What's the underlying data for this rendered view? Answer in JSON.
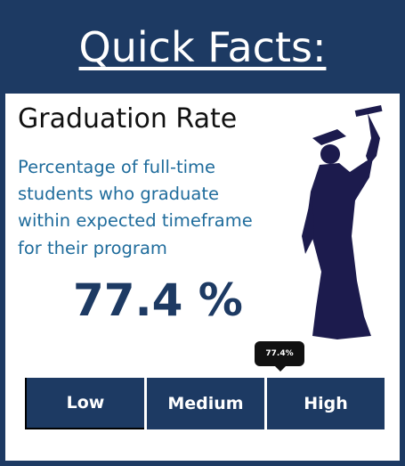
{
  "header": {
    "title": "Quick Facts:"
  },
  "metric": {
    "title": "Graduation Rate",
    "description_lines": [
      "Percentage of full-time",
      "students who graduate",
      "within expected timeframe",
      "for their program"
    ],
    "value": "77.4 %"
  },
  "scale": {
    "marker_label": "77.4%",
    "segments": [
      "Low",
      "Medium",
      "High"
    ]
  }
}
